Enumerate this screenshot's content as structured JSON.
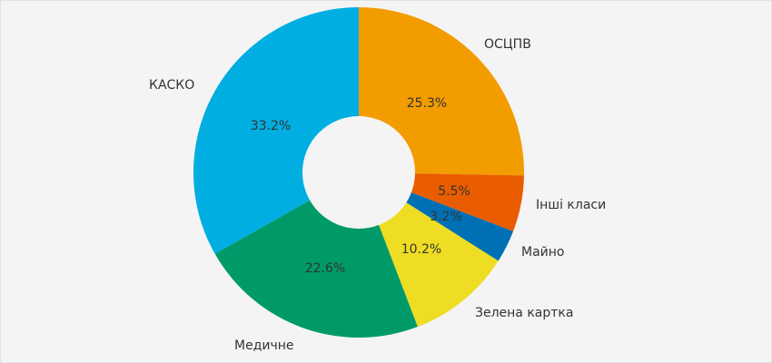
{
  "chart_data": {
    "type": "pie",
    "subtype": "donut",
    "title": "",
    "start_angle_deg": 90,
    "direction": "clockwise",
    "categories": [
      "ОСЦПВ",
      "Інші класи",
      "Майно",
      "Зелена картка",
      "Медичне",
      "КАСКО"
    ],
    "values": [
      25.3,
      5.5,
      3.2,
      10.2,
      22.6,
      33.2
    ],
    "value_labels": [
      "25.3%",
      "5.5%",
      "3.2%",
      "10.2%",
      "22.6%",
      "33.2%"
    ],
    "colors": [
      "#f39c00",
      "#e95c00",
      "#0070b5",
      "#eedd22",
      "#009a68",
      "#00aee2"
    ],
    "legend": "none (labels placed outside slices)"
  },
  "slices": [
    {
      "label": "ОСЦПВ",
      "pct": "25.3%"
    },
    {
      "label": "Інші класи",
      "pct": "5.5%"
    },
    {
      "label": "Майно",
      "pct": "3.2%"
    },
    {
      "label": "Зелена картка",
      "pct": "10.2%"
    },
    {
      "label": "Медичне",
      "pct": "22.6%"
    },
    {
      "label": "КАСКО",
      "pct": "33.2%"
    }
  ],
  "colors": {
    "background": "#f4f4f4",
    "text": "#333333"
  }
}
